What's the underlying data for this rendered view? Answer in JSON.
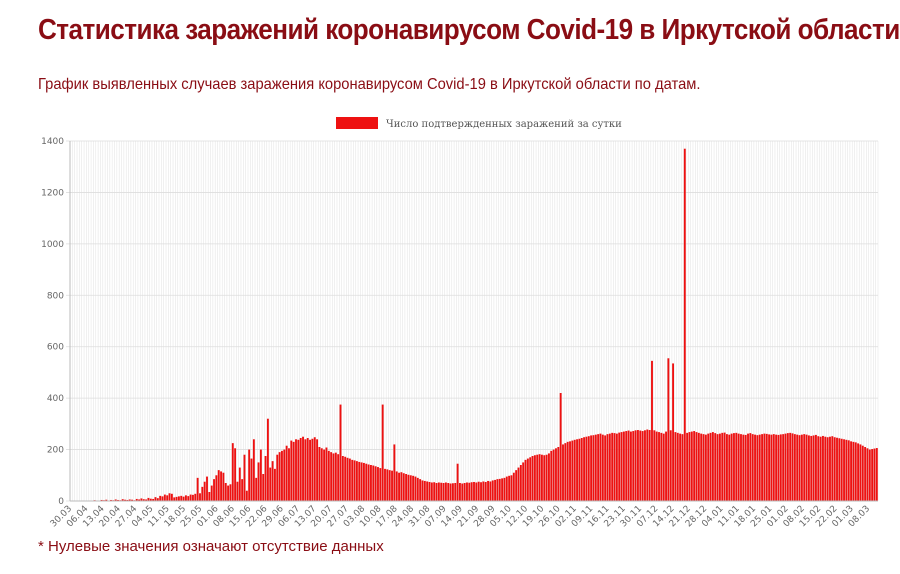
{
  "page": {
    "title": "Статистика заражений коронавирусом Covid-19 в Иркутской области",
    "subtitle": "График выявленных случаев заражения коронавирусом Covid-19 в Иркутской области по датам.",
    "footnote": "* Нулевые значения означают отсутствие данных"
  },
  "colors": {
    "title": "#8a0d14",
    "bar": "#ee1111",
    "grid": "#e6e6e6"
  },
  "chart_data": {
    "type": "bar",
    "legend": {
      "label": "Число подтвержденных заражений за сутки",
      "placement": "top-center"
    },
    "grid": true,
    "ylim": [
      0,
      1400
    ],
    "y_ticks": [
      0,
      200,
      400,
      600,
      800,
      1000,
      1200,
      1400
    ],
    "x_tick_labels": [
      "30.03",
      "06.04",
      "13.04",
      "20.04",
      "27.04",
      "04.05",
      "11.05",
      "18.05",
      "25.05",
      "01.06",
      "08.06",
      "15.06",
      "22.06",
      "29.06",
      "06.07",
      "13.07",
      "20.07",
      "27.07",
      "03.08",
      "10.08",
      "17.08",
      "24.08",
      "31.08",
      "07.09",
      "14.09",
      "21.09",
      "28.09",
      "05.10",
      "12.10",
      "19.10",
      "26.10",
      "02.11",
      "09.11",
      "16.11",
      "23.11",
      "30.11",
      "07.12",
      "14.12",
      "21.12",
      "28.12",
      "04.01",
      "11.01",
      "18.01",
      "25.01",
      "01.02",
      "08.02",
      "15.02",
      "22.02",
      "01.03",
      "08.03"
    ],
    "values": [
      0,
      1,
      1,
      0,
      1,
      2,
      1,
      0,
      2,
      1,
      3,
      2,
      1,
      4,
      3,
      5,
      2,
      4,
      3,
      6,
      4,
      3,
      7,
      5,
      4,
      6,
      5,
      3,
      8,
      6,
      10,
      7,
      6,
      12,
      9,
      8,
      15,
      11,
      20,
      18,
      25,
      22,
      30,
      28,
      14,
      16,
      18,
      20,
      17,
      22,
      19,
      25,
      24,
      28,
      90,
      30,
      55,
      75,
      95,
      35,
      60,
      85,
      100,
      120,
      115,
      110,
      70,
      60,
      65,
      225,
      205,
      75,
      130,
      85,
      180,
      40,
      200,
      165,
      240,
      90,
      150,
      200,
      105,
      175,
      320,
      130,
      155,
      125,
      180,
      190,
      195,
      200,
      215,
      205,
      235,
      230,
      240,
      238,
      245,
      250,
      240,
      245,
      238,
      242,
      248,
      240,
      210,
      205,
      200,
      208,
      195,
      190,
      185,
      188,
      182,
      375,
      175,
      172,
      168,
      165,
      160,
      158,
      155,
      152,
      150,
      148,
      145,
      142,
      140,
      138,
      135,
      132,
      128,
      375,
      125,
      123,
      120,
      118,
      220,
      115,
      110,
      112,
      108,
      105,
      102,
      100,
      98,
      95,
      90,
      85,
      80,
      78,
      76,
      74,
      72,
      73,
      70,
      72,
      71,
      70,
      72,
      70,
      68,
      69,
      70,
      145,
      70,
      68,
      70,
      72,
      71,
      73,
      74,
      72,
      75,
      73,
      76,
      74,
      78,
      76,
      80,
      82,
      85,
      86,
      88,
      90,
      95,
      98,
      100,
      110,
      120,
      130,
      140,
      150,
      160,
      165,
      170,
      175,
      178,
      180,
      182,
      180,
      178,
      180,
      185,
      195,
      200,
      205,
      210,
      420,
      220,
      225,
      230,
      232,
      235,
      238,
      240,
      242,
      245,
      248,
      250,
      252,
      255,
      256,
      258,
      260,
      262,
      258,
      255,
      260,
      262,
      265,
      264,
      262,
      266,
      268,
      270,
      272,
      274,
      270,
      272,
      275,
      276,
      274,
      272,
      275,
      278,
      276,
      545,
      275,
      270,
      268,
      265,
      262,
      270,
      555,
      275,
      535,
      268,
      265,
      262,
      260,
      1370,
      265,
      268,
      270,
      272,
      268,
      265,
      262,
      260,
      258,
      262,
      265,
      268,
      264,
      260,
      262,
      265,
      266,
      260,
      258,
      262,
      264,
      265,
      262,
      260,
      258,
      257,
      262,
      264,
      260,
      258,
      256,
      258,
      260,
      262,
      261,
      259,
      258,
      260,
      258,
      257,
      259,
      260,
      262,
      264,
      265,
      263,
      260,
      258,
      256,
      258,
      260,
      258,
      255,
      253,
      255,
      257,
      252,
      250,
      253,
      250,
      248,
      250,
      252,
      248,
      246,
      244,
      242,
      240,
      238,
      236,
      232,
      230,
      228,
      224,
      220,
      215,
      210,
      205,
      200,
      202,
      204,
      206
    ]
  }
}
